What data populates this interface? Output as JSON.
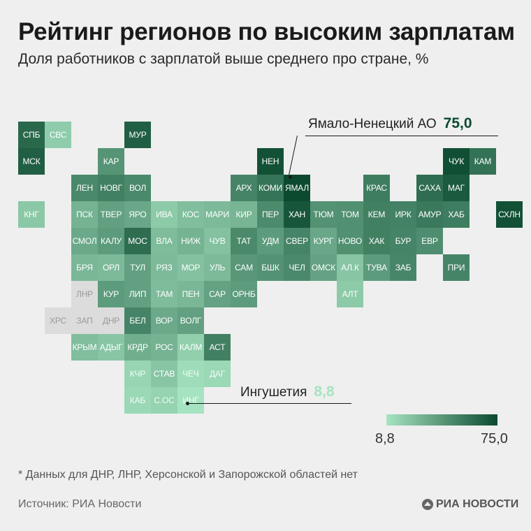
{
  "title": "Рейтинг регионов по высоким зарплатам",
  "subtitle": "Доля работников с зарплатой выше среднего про стране, %",
  "map": {
    "scale": {
      "min": 8.8,
      "max": 75.0,
      "min_color": "#a6e4c1",
      "max_color": "#0c4a30",
      "nodata_color": "#dcdcdc"
    },
    "regions": [
      {
        "code": "СПБ",
        "row": 0,
        "col": 0,
        "value": 62
      },
      {
        "code": "СВС",
        "row": 0,
        "col": 1,
        "value": 19
      },
      {
        "code": "МУР",
        "row": 0,
        "col": 4,
        "value": 66
      },
      {
        "code": "МСК",
        "row": 1,
        "col": 0,
        "value": 66
      },
      {
        "code": "КАР",
        "row": 1,
        "col": 3,
        "value": 43
      },
      {
        "code": "НЕН",
        "row": 1,
        "col": 9,
        "value": 72
      },
      {
        "code": "ЧУК",
        "row": 1,
        "col": 16,
        "value": 73
      },
      {
        "code": "КАМ",
        "row": 1,
        "col": 17,
        "value": 58
      },
      {
        "code": "ЛЕН",
        "row": 2,
        "col": 2,
        "value": 48
      },
      {
        "code": "НОВГ",
        "row": 2,
        "col": 3,
        "value": 52
      },
      {
        "code": "ВОЛ",
        "row": 2,
        "col": 4,
        "value": 48
      },
      {
        "code": "АРХ",
        "row": 2,
        "col": 8,
        "value": 50
      },
      {
        "code": "КОМИ",
        "row": 2,
        "col": 9,
        "value": 57
      },
      {
        "code": "ЯМАЛ",
        "row": 2,
        "col": 10,
        "value": 75.0
      },
      {
        "code": "КРАС",
        "row": 2,
        "col": 13,
        "value": 53
      },
      {
        "code": "САХА",
        "row": 2,
        "col": 15,
        "value": 60
      },
      {
        "code": "МАГ",
        "row": 2,
        "col": 16,
        "value": 68
      },
      {
        "code": "КНГ",
        "row": 3,
        "col": 0,
        "value": 21
      },
      {
        "code": "ПСК",
        "row": 3,
        "col": 2,
        "value": 30
      },
      {
        "code": "ТВЕР",
        "row": 3,
        "col": 3,
        "value": 38
      },
      {
        "code": "ЯРО",
        "row": 3,
        "col": 4,
        "value": 35
      },
      {
        "code": "ИВА",
        "row": 3,
        "col": 5,
        "value": 20
      },
      {
        "code": "КОС",
        "row": 3,
        "col": 6,
        "value": 25
      },
      {
        "code": "МАРИ",
        "row": 3,
        "col": 7,
        "value": 27
      },
      {
        "code": "КИР",
        "row": 3,
        "col": 8,
        "value": 29
      },
      {
        "code": "ПЕР",
        "row": 3,
        "col": 9,
        "value": 47
      },
      {
        "code": "ХАН",
        "row": 3,
        "col": 10,
        "value": 70
      },
      {
        "code": "ТЮМ",
        "row": 3,
        "col": 11,
        "value": 44
      },
      {
        "code": "ТОМ",
        "row": 3,
        "col": 12,
        "value": 45
      },
      {
        "code": "КЕМ",
        "row": 3,
        "col": 13,
        "value": 52
      },
      {
        "code": "ИРК",
        "row": 3,
        "col": 14,
        "value": 51
      },
      {
        "code": "АМУР",
        "row": 3,
        "col": 15,
        "value": 55
      },
      {
        "code": "ХАБ",
        "row": 3,
        "col": 16,
        "value": 53
      },
      {
        "code": "СХЛН",
        "row": 3,
        "col": 18,
        "value": 72
      },
      {
        "code": "СМОЛ",
        "row": 4,
        "col": 2,
        "value": 34
      },
      {
        "code": "КАЛУ",
        "row": 4,
        "col": 3,
        "value": 40
      },
      {
        "code": "МОС",
        "row": 4,
        "col": 4,
        "value": 60
      },
      {
        "code": "ВЛА",
        "row": 4,
        "col": 5,
        "value": 26
      },
      {
        "code": "НИЖ",
        "row": 4,
        "col": 6,
        "value": 30
      },
      {
        "code": "ЧУВ",
        "row": 4,
        "col": 7,
        "value": 24
      },
      {
        "code": "ТАТ",
        "row": 4,
        "col": 8,
        "value": 48
      },
      {
        "code": "УДМ",
        "row": 4,
        "col": 9,
        "value": 40
      },
      {
        "code": "СВЕР",
        "row": 4,
        "col": 10,
        "value": 50
      },
      {
        "code": "КУРГ",
        "row": 4,
        "col": 11,
        "value": 35
      },
      {
        "code": "НОВО",
        "row": 4,
        "col": 12,
        "value": 45
      },
      {
        "code": "ХАК",
        "row": 4,
        "col": 13,
        "value": 52
      },
      {
        "code": "БУР",
        "row": 4,
        "col": 14,
        "value": 50
      },
      {
        "code": "ЕВР",
        "row": 4,
        "col": 15,
        "value": 46
      },
      {
        "code": "БРЯ",
        "row": 5,
        "col": 2,
        "value": 28
      },
      {
        "code": "ОРЛ",
        "row": 5,
        "col": 3,
        "value": 27
      },
      {
        "code": "ТУЛ",
        "row": 5,
        "col": 4,
        "value": 38
      },
      {
        "code": "РЯЗ",
        "row": 5,
        "col": 5,
        "value": 27
      },
      {
        "code": "МОР",
        "row": 5,
        "col": 6,
        "value": 24
      },
      {
        "code": "УЛЬ",
        "row": 5,
        "col": 7,
        "value": 27
      },
      {
        "code": "САМ",
        "row": 5,
        "col": 8,
        "value": 42
      },
      {
        "code": "БШК",
        "row": 5,
        "col": 9,
        "value": 44
      },
      {
        "code": "ЧЕЛ",
        "row": 5,
        "col": 10,
        "value": 48
      },
      {
        "code": "ОМСК",
        "row": 5,
        "col": 11,
        "value": 37
      },
      {
        "code": "АЛ.К",
        "row": 5,
        "col": 12,
        "value": 22
      },
      {
        "code": "ТУВА",
        "row": 5,
        "col": 13,
        "value": 40
      },
      {
        "code": "ЗАБ",
        "row": 5,
        "col": 14,
        "value": 49
      },
      {
        "code": "ПРИ",
        "row": 5,
        "col": 16,
        "value": 50
      },
      {
        "code": "ЛНР",
        "row": 6,
        "col": 2,
        "value": null
      },
      {
        "code": "КУР",
        "row": 6,
        "col": 3,
        "value": 40
      },
      {
        "code": "ЛИП",
        "row": 6,
        "col": 4,
        "value": 38
      },
      {
        "code": "ТАМ",
        "row": 6,
        "col": 5,
        "value": 26
      },
      {
        "code": "ПЕН",
        "row": 6,
        "col": 6,
        "value": 28
      },
      {
        "code": "САР",
        "row": 6,
        "col": 7,
        "value": 37
      },
      {
        "code": "ОРНБ",
        "row": 6,
        "col": 8,
        "value": 40
      },
      {
        "code": "АЛТ",
        "row": 6,
        "col": 12,
        "value": 20
      },
      {
        "code": "ХРС",
        "row": 7,
        "col": 1,
        "value": null
      },
      {
        "code": "ЗАП",
        "row": 7,
        "col": 2,
        "value": null
      },
      {
        "code": "ДНР",
        "row": 7,
        "col": 3,
        "value": null
      },
      {
        "code": "БЕЛ",
        "row": 7,
        "col": 4,
        "value": 50
      },
      {
        "code": "ВОР",
        "row": 7,
        "col": 5,
        "value": 34
      },
      {
        "code": "ВОЛГ",
        "row": 7,
        "col": 6,
        "value": 38
      },
      {
        "code": "КРЫМ",
        "row": 8,
        "col": 2,
        "value": 25
      },
      {
        "code": "АДЫГ",
        "row": 8,
        "col": 3,
        "value": 22
      },
      {
        "code": "КРДР",
        "row": 8,
        "col": 4,
        "value": 32
      },
      {
        "code": "РОС",
        "row": 8,
        "col": 5,
        "value": 30
      },
      {
        "code": "КАЛМ",
        "row": 8,
        "col": 6,
        "value": 18
      },
      {
        "code": "АСТ",
        "row": 8,
        "col": 7,
        "value": 52
      },
      {
        "code": "КЧР",
        "row": 9,
        "col": 4,
        "value": 15
      },
      {
        "code": "СТАВ",
        "row": 9,
        "col": 5,
        "value": 22
      },
      {
        "code": "ЧЕЧ",
        "row": 9,
        "col": 6,
        "value": 12
      },
      {
        "code": "ДАГ",
        "row": 9,
        "col": 7,
        "value": 14
      },
      {
        "code": "КАБ",
        "row": 10,
        "col": 4,
        "value": 14
      },
      {
        "code": "С.ОС",
        "row": 10,
        "col": 5,
        "value": 16
      },
      {
        "code": "ИНГ",
        "row": 10,
        "col": 6,
        "value": 8.8
      }
    ]
  },
  "callouts": {
    "top": {
      "label": "Ямало-Ненецкий АО",
      "value": "75,0",
      "color": "#0c4a30"
    },
    "bottom": {
      "label": "Ингушетия",
      "value": "8,8",
      "color": "#a6e4c1"
    }
  },
  "legend": {
    "min_label": "8,8",
    "max_label": "75,0"
  },
  "footnote": "* Данных для ДНР, ЛНР, Херсонской и Запорожской областей нет",
  "source": "Источник: РИА Новости",
  "brand": "РИА НОВОСТИ"
}
